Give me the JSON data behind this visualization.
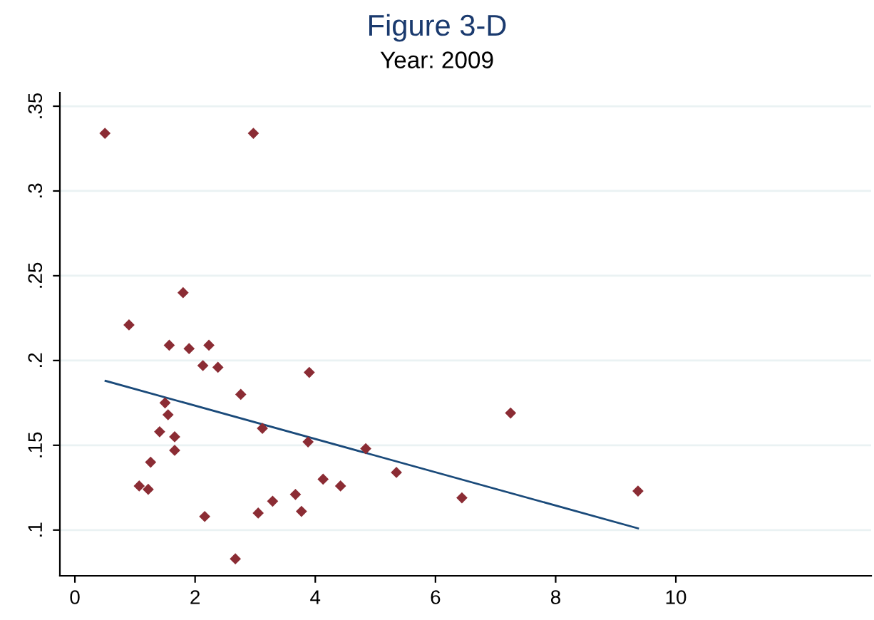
{
  "chart_data": {
    "type": "scatter",
    "title": "Figure 3-D",
    "subtitle": "Year: 2009",
    "xlim": [
      -0.25,
      13.25
    ],
    "xticks": [
      0,
      2,
      4,
      6,
      8,
      10
    ],
    "ylim": [
      0.073,
      0.358
    ],
    "yticks": [
      {
        "value": 0.1,
        "label": ".1"
      },
      {
        "value": 0.15,
        "label": ".15"
      },
      {
        "value": 0.2,
        "label": ".2"
      },
      {
        "value": 0.25,
        "label": ".25"
      },
      {
        "value": 0.3,
        "label": ".3"
      },
      {
        "value": 0.35,
        "label": ".35"
      }
    ],
    "grid": "y",
    "series": [
      {
        "marker": "diamond",
        "color": "#8b2c34",
        "x": [
          0.5,
          2.97,
          1.8,
          0.9,
          1.57,
          1.9,
          2.23,
          2.13,
          2.38,
          3.9,
          2.76,
          1.5,
          1.55,
          1.41,
          1.66,
          1.66,
          3.12,
          3.88,
          4.84,
          5.35,
          1.26,
          1.07,
          1.22,
          4.13,
          4.42,
          3.67,
          3.29,
          3.05,
          3.77,
          2.16,
          2.67,
          7.25,
          6.44,
          9.37
        ],
        "values": [
          0.334,
          0.334,
          0.24,
          0.221,
          0.209,
          0.207,
          0.209,
          0.197,
          0.196,
          0.193,
          0.18,
          0.175,
          0.168,
          0.158,
          0.155,
          0.147,
          0.16,
          0.152,
          0.148,
          0.134,
          0.14,
          0.126,
          0.124,
          0.13,
          0.126,
          0.121,
          0.117,
          0.11,
          0.111,
          0.108,
          0.083,
          0.169,
          0.119,
          0.123
        ]
      },
      {
        "type": "line",
        "color": "#1a4a7a",
        "x": [
          0.51,
          9.37
        ],
        "values": [
          0.188,
          0.101
        ]
      }
    ]
  }
}
